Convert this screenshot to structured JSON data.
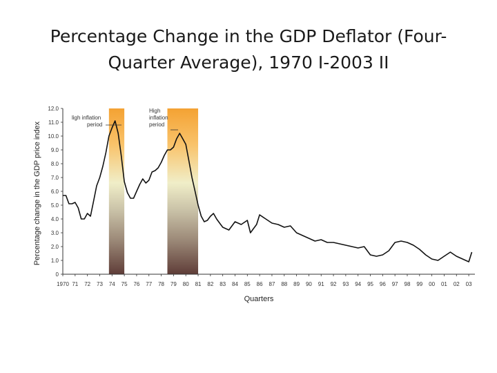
{
  "slide": {
    "title_line1": "Percentage Change in the GDP Deflator (Four-",
    "title_line2": "Quarter Average), 1970 I-2003 II"
  },
  "chart_data": {
    "type": "line",
    "xlabel": "Quarters",
    "ylabel": "Percentage change in the GDP price index",
    "xlim": [
      1970,
      2003.5
    ],
    "ylim": [
      0,
      12
    ],
    "x_ticks": [
      {
        "value": 1970,
        "label": "1970"
      },
      {
        "value": 1971,
        "label": "71"
      },
      {
        "value": 1972,
        "label": "72"
      },
      {
        "value": 1973,
        "label": "73"
      },
      {
        "value": 1974,
        "label": "74"
      },
      {
        "value": 1975,
        "label": "75"
      },
      {
        "value": 1976,
        "label": "76"
      },
      {
        "value": 1977,
        "label": "77"
      },
      {
        "value": 1978,
        "label": "78"
      },
      {
        "value": 1979,
        "label": "79"
      },
      {
        "value": 1980,
        "label": "80"
      },
      {
        "value": 1981,
        "label": "81"
      },
      {
        "value": 1982,
        "label": "82"
      },
      {
        "value": 1983,
        "label": "83"
      },
      {
        "value": 1984,
        "label": "84"
      },
      {
        "value": 1985,
        "label": "85"
      },
      {
        "value": 1986,
        "label": "86"
      },
      {
        "value": 1987,
        "label": "87"
      },
      {
        "value": 1988,
        "label": "88"
      },
      {
        "value": 1989,
        "label": "89"
      },
      {
        "value": 1990,
        "label": "90"
      },
      {
        "value": 1991,
        "label": "91"
      },
      {
        "value": 1992,
        "label": "92"
      },
      {
        "value": 1993,
        "label": "93"
      },
      {
        "value": 1994,
        "label": "94"
      },
      {
        "value": 1995,
        "label": "95"
      },
      {
        "value": 1996,
        "label": "96"
      },
      {
        "value": 1997,
        "label": "97"
      },
      {
        "value": 1998,
        "label": "98"
      },
      {
        "value": 1999,
        "label": "99"
      },
      {
        "value": 2000,
        "label": "00"
      },
      {
        "value": 2001,
        "label": "01"
      },
      {
        "value": 2002,
        "label": "02"
      },
      {
        "value": 2003,
        "label": "03"
      }
    ],
    "y_ticks": [
      {
        "value": 0,
        "label": "0"
      },
      {
        "value": 1,
        "label": "1.0"
      },
      {
        "value": 2,
        "label": "2.0"
      },
      {
        "value": 3,
        "label": "3.0"
      },
      {
        "value": 4,
        "label": "4.0"
      },
      {
        "value": 5,
        "label": "5.0"
      },
      {
        "value": 6,
        "label": "6.0"
      },
      {
        "value": 7,
        "label": "7.0"
      },
      {
        "value": 8,
        "label": "8.0"
      },
      {
        "value": 9,
        "label": "9.0"
      },
      {
        "value": 10,
        "label": "10.0"
      },
      {
        "value": 11,
        "label": "11.0"
      },
      {
        "value": 12,
        "label": "12.0"
      }
    ],
    "shaded_periods": [
      {
        "start": 1973.75,
        "end": 1975.0,
        "annotation": [
          "ligh inflation",
          "period"
        ]
      },
      {
        "start": 1978.5,
        "end": 1981.0,
        "annotation": [
          "High",
          "inflation",
          "period"
        ]
      }
    ],
    "series": [
      {
        "x": [
          1970.0,
          1970.25,
          1970.5,
          1970.75,
          1971.0,
          1971.25,
          1971.5,
          1971.75,
          1972.0,
          1972.25,
          1972.5,
          1972.75,
          1973.0,
          1973.25,
          1973.5,
          1973.75,
          1974.0,
          1974.25,
          1974.5,
          1974.75,
          1975.0,
          1975.25,
          1975.5,
          1975.75,
          1976.0,
          1976.25,
          1976.5,
          1976.75,
          1977.0,
          1977.25,
          1977.5,
          1977.75,
          1978.0,
          1978.25,
          1978.5,
          1978.75,
          1979.0,
          1979.25,
          1979.5,
          1979.75,
          1980.0,
          1980.25,
          1980.5,
          1980.75,
          1981.0,
          1981.25,
          1981.5,
          1981.75,
          1982.0,
          1982.25,
          1982.5,
          1982.75,
          1983.0,
          1983.5,
          1984.0,
          1984.5,
          1985.0,
          1985.25,
          1985.5,
          1985.75,
          1986.0,
          1986.5,
          1987.0,
          1987.5,
          1988.0,
          1988.5,
          1989.0,
          1989.5,
          1990.0,
          1990.5,
          1991.0,
          1991.5,
          1992.0,
          1992.5,
          1993.0,
          1993.5,
          1994.0,
          1994.5,
          1995.0,
          1995.5,
          1996.0,
          1996.5,
          1997.0,
          1997.5,
          1998.0,
          1998.5,
          1999.0,
          1999.5,
          2000.0,
          2000.5,
          2001.0,
          2001.5,
          2002.0,
          2002.5,
          2003.0,
          2003.25
        ],
        "y": [
          5.7,
          5.7,
          5.1,
          5.1,
          5.2,
          4.8,
          4.0,
          4.0,
          4.4,
          4.2,
          5.3,
          6.4,
          7.0,
          7.8,
          8.8,
          10.0,
          10.6,
          11.1,
          10.2,
          8.6,
          6.7,
          5.9,
          5.5,
          5.5,
          6.0,
          6.5,
          6.9,
          6.6,
          6.8,
          7.4,
          7.5,
          7.7,
          8.1,
          8.6,
          9.0,
          9.0,
          9.2,
          9.8,
          10.2,
          9.8,
          9.4,
          8.2,
          7.0,
          6.0,
          5.0,
          4.2,
          3.8,
          3.9,
          4.2,
          4.4,
          4.0,
          3.7,
          3.4,
          3.2,
          3.8,
          3.6,
          3.9,
          3.0,
          3.3,
          3.6,
          4.3,
          4.0,
          3.7,
          3.6,
          3.4,
          3.5,
          3.0,
          2.8,
          2.6,
          2.4,
          2.5,
          2.3,
          2.3,
          2.2,
          2.1,
          2.0,
          1.9,
          2.0,
          1.4,
          1.3,
          1.4,
          1.7,
          2.3,
          2.4,
          2.3,
          2.1,
          1.8,
          1.4,
          1.1,
          1.0,
          1.3,
          1.6,
          1.3,
          1.1,
          0.9,
          1.6
        ]
      }
    ]
  }
}
